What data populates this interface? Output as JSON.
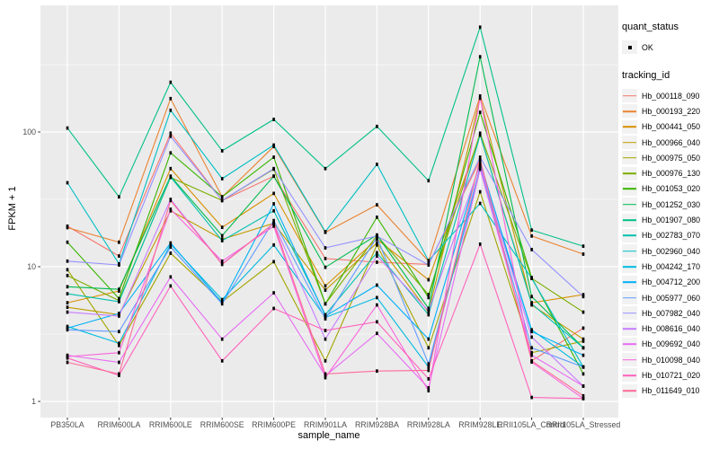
{
  "figure": {
    "kind": "ggplot line chart",
    "title": ""
  },
  "axes": {
    "x": {
      "title": "sample_name"
    },
    "y": {
      "title": "FPKM + 1",
      "ticks": [
        {
          "value": 100,
          "label": "100"
        },
        {
          "value": 10,
          "label": "10"
        },
        {
          "value": 1,
          "label": "1"
        }
      ],
      "minor_gridlines": [
        3.1623,
        31.623,
        316.23
      ]
    }
  },
  "legend": {
    "quant_status": {
      "title": "quant_status",
      "items": [
        {
          "label": "OK",
          "marker": "black-point"
        }
      ]
    },
    "tracking_id": {
      "title": "tracking_id"
    }
  },
  "colors": {
    "panel_bg": "#EBEBEB",
    "gridline": "#FFFFFF",
    "legend_key_bg": "#F2F2F2",
    "tick_label": "#4D4D4D",
    "tick_mark": "#333333",
    "point": "#000000"
  },
  "chart_data": {
    "type": "line",
    "yscale": "log10",
    "ylim": [
      1,
      871
    ],
    "grid": true,
    "legend_position": "right",
    "xlabel": "sample_name",
    "ylabel": "FPKM + 1",
    "point_marker": {
      "shape": "small-black-square",
      "meaning": "quant_status OK"
    },
    "categories": [
      "PB350LA",
      "RRIM600LA",
      "RRIM600LE",
      "RRIM600SE",
      "RRIM600PE",
      "RRIM901LA",
      "RRIM928BA",
      "RRIM928LA",
      "RRIM928LE",
      "RRII105LA_Control",
      "RRII105LA_Stressed"
    ],
    "series": [
      {
        "name": "Hb_000118_090",
        "color": "#F8766D",
        "values": [
          20,
          12,
          98,
          31,
          47,
          11.5,
          10.8,
          10.4,
          62,
          2.0,
          3.5
        ]
      },
      {
        "name": "Hb_000193_220",
        "color": "#EA8331",
        "values": [
          19.5,
          15.2,
          177,
          33,
          78,
          18,
          28.8,
          11,
          185,
          16.9,
          12.4
        ]
      },
      {
        "name": "Hb_000441_050",
        "color": "#D89000",
        "values": [
          5.4,
          6.6,
          53.5,
          19.6,
          35,
          7.2,
          16,
          8.0,
          95,
          5.4,
          6.2
        ]
      },
      {
        "name": "Hb_000966_040",
        "color": "#C09B00",
        "values": [
          5.0,
          4.4,
          26,
          16,
          21,
          6.7,
          15,
          4.6,
          178,
          5.2,
          2.9
        ]
      },
      {
        "name": "Hb_000975_050",
        "color": "#A3A500",
        "values": [
          9.5,
          2.6,
          12.6,
          5.5,
          10.9,
          2.0,
          14.5,
          2.5,
          36,
          2.3,
          2.8
        ]
      },
      {
        "name": "Hb_000976_130",
        "color": "#7CAE00",
        "values": [
          8.6,
          5.6,
          46,
          31,
          53,
          5.3,
          17,
          6.2,
          98,
          8.2,
          4.6
        ]
      },
      {
        "name": "Hb_001053_020",
        "color": "#39B600",
        "values": [
          15.2,
          5.8,
          70,
          33,
          65,
          5.3,
          23.3,
          5.9,
          140,
          8.3,
          1.6
        ]
      },
      {
        "name": "Hb_001252_030",
        "color": "#00BB4E",
        "values": [
          7.1,
          6.8,
          47,
          17,
          47,
          9.9,
          17.2,
          4.9,
          362,
          6.0,
          2.5
        ]
      },
      {
        "name": "Hb_001907_080",
        "color": "#00C087",
        "values": [
          107,
          33,
          234,
          72.5,
          124,
          53.5,
          110,
          43.5,
          600,
          18.7,
          14.2
        ]
      },
      {
        "name": "Hb_002783_070",
        "color": "#00C0AF",
        "values": [
          6.3,
          5.5,
          46.4,
          15.6,
          26,
          4.4,
          12.7,
          4.4,
          95,
          5.3,
          2.5
        ]
      },
      {
        "name": "Hb_002960_040",
        "color": "#00BFC4",
        "values": [
          42,
          10.5,
          145,
          45,
          80,
          18.2,
          57.5,
          11.1,
          29.5,
          8.2,
          1.8
        ]
      },
      {
        "name": "Hb_004242_170",
        "color": "#00BAE0",
        "values": [
          3.6,
          2.7,
          14.7,
          5.7,
          14.5,
          4.2,
          5.9,
          1.8,
          53,
          3.4,
          1.8
        ]
      },
      {
        "name": "Hb_004712_200",
        "color": "#00B0F6",
        "values": [
          3.5,
          4.5,
          15,
          5.4,
          29.3,
          4.3,
          7.3,
          2.9,
          60,
          3.3,
          2.2
        ]
      },
      {
        "name": "Hb_005977_060",
        "color": "#619CFF",
        "values": [
          3.4,
          3.3,
          14,
          5.3,
          22,
          4.1,
          16.5,
          1.9,
          55,
          2.5,
          1.8
        ]
      },
      {
        "name": "Hb_007982_040",
        "color": "#9590FF",
        "values": [
          11,
          10.3,
          93,
          31,
          53.5,
          13.8,
          16.9,
          10.3,
          65,
          13.4,
          6.0
        ]
      },
      {
        "name": "Hb_008616_040",
        "color": "#C77CFF",
        "values": [
          4.6,
          4.3,
          31.6,
          10.5,
          20.9,
          2.9,
          12,
          4.7,
          57,
          3.0,
          1.3
        ]
      },
      {
        "name": "Hb_009692_040",
        "color": "#E76BF3",
        "values": [
          2.2,
          1.95,
          8.4,
          2.9,
          6.4,
          1.55,
          3.2,
          1.26,
          53,
          2.2,
          1.3
        ]
      },
      {
        "name": "Hb_010098_040",
        "color": "#FA62DB",
        "values": [
          2.15,
          2.3,
          26.7,
          11,
          20,
          1.5,
          5.2,
          1.2,
          180,
          1.96,
          1.05
        ]
      },
      {
        "name": "Hb_010721_020",
        "color": "#FF62BC",
        "values": [
          2.1,
          1.56,
          7.2,
          2.0,
          4.9,
          3.36,
          3.9,
          1.47,
          14.7,
          1.07,
          1.05
        ]
      },
      {
        "name": "Hb_011649_010",
        "color": "#FF6A98",
        "values": [
          1.95,
          1.6,
          31,
          10.4,
          21,
          1.6,
          1.68,
          1.7,
          63,
          2.0,
          1.1
        ]
      }
    ]
  }
}
